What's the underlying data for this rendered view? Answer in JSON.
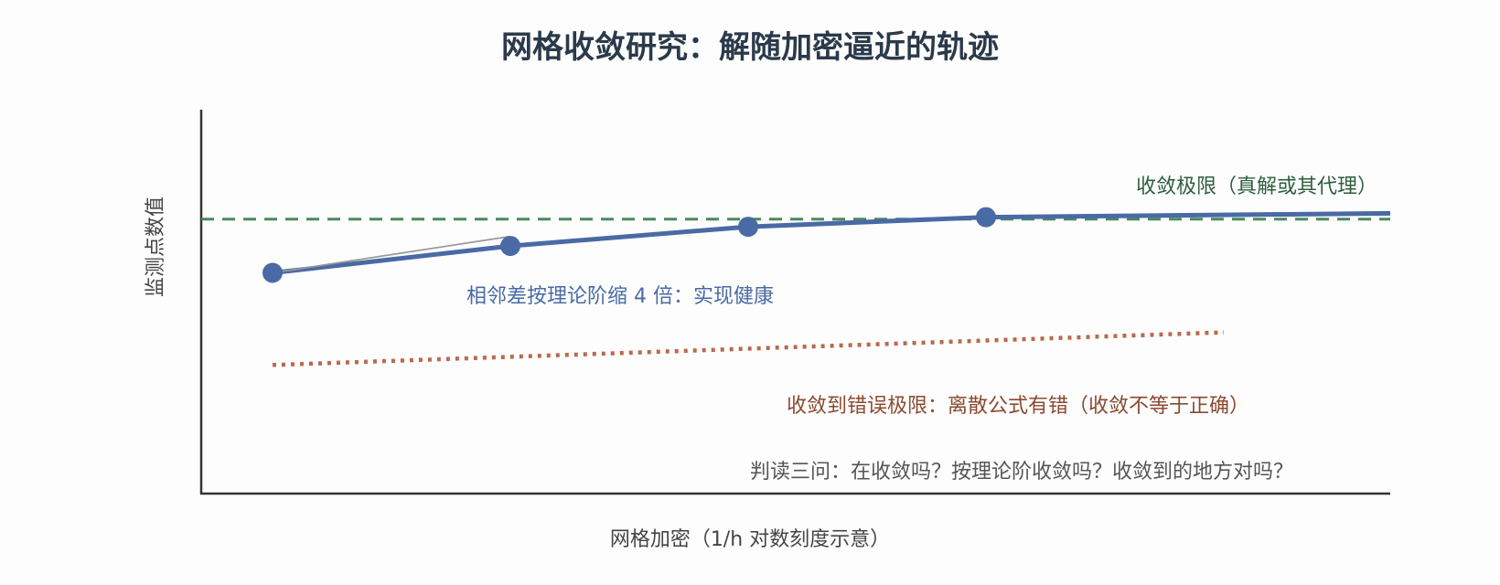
{
  "chart_data": {
    "type": "line",
    "title": "网格收敛研究：解随加密逼近的轨迹",
    "xlabel": "网格加密（1/h 对数刻度示意）",
    "ylabel": "监测点数值",
    "grid": false,
    "x_range": [
      0,
      5
    ],
    "y_range": [
      0,
      1
    ],
    "series": [
      {
        "role": "monitored-solution",
        "color": "#4a6aa5",
        "x": [
          0.3,
          1.3,
          2.3,
          3.3,
          5.0
        ],
        "y": [
          0.575,
          0.645,
          0.695,
          0.72,
          0.73
        ],
        "markers_count": 4
      },
      {
        "role": "true-limit",
        "color": "#4a8a5a",
        "style": "dashed",
        "x": [
          0.0,
          5.0
        ],
        "y": [
          0.715,
          0.715
        ]
      },
      {
        "role": "wrong-limit",
        "color": "#b86a4e",
        "style": "dotted",
        "x": [
          0.3,
          4.3
        ],
        "y": [
          0.335,
          0.42
        ]
      },
      {
        "role": "theoretical-slope",
        "color": "#999999",
        "x": [
          0.3,
          1.3
        ],
        "y": [
          0.575,
          0.67
        ]
      }
    ],
    "annotations": {
      "true_limit": "收敛极限（真解或其代理）",
      "healthy": "相邻差按理论阶缩 4 倍：实现健康",
      "wrong_limit": "收敛到错误极限：离散公式有错（收敛不等于正确）",
      "questions": "判读三问：在收敛吗？按理论阶收敛吗？收敛到的地方对吗？"
    }
  }
}
